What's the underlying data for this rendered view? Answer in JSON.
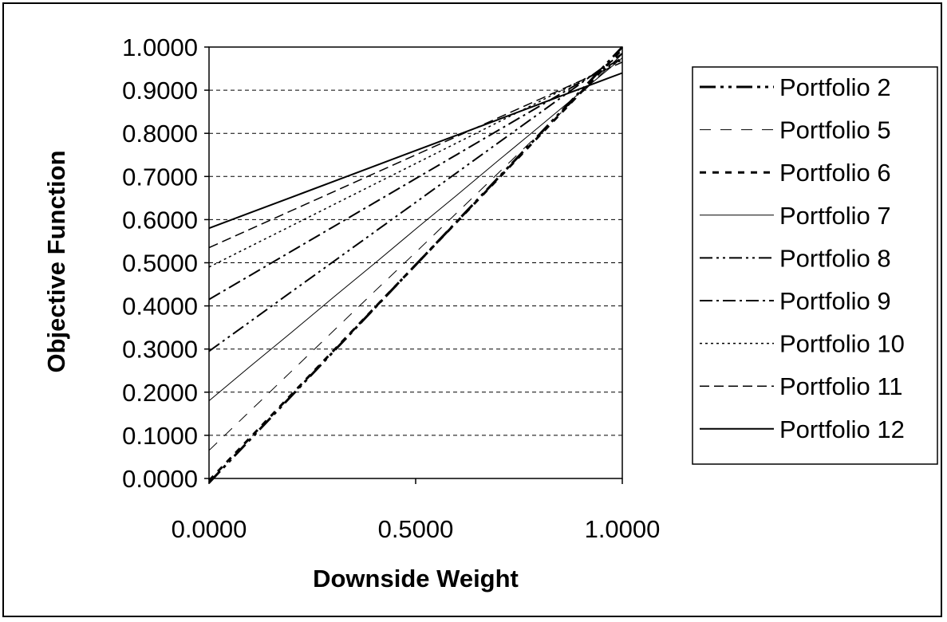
{
  "chart_data": {
    "type": "line",
    "title": "",
    "xlabel": "Downside Weight",
    "ylabel": "Objective Function",
    "xlim": [
      0,
      1
    ],
    "ylim": [
      0,
      1
    ],
    "x_ticks": [
      "0.0000",
      "0.5000",
      "1.0000"
    ],
    "y_ticks": [
      "0.0000",
      "0.1000",
      "0.2000",
      "0.3000",
      "0.4000",
      "0.5000",
      "0.6000",
      "0.7000",
      "0.8000",
      "0.9000",
      "1.0000"
    ],
    "grid": "horizontal dashed",
    "legend_position": "right",
    "x": [
      0,
      0.1,
      0.2,
      0.3,
      0.4,
      0.5,
      0.6,
      0.7,
      0.8,
      0.9,
      1.0
    ],
    "series": [
      {
        "name": "Portfolio 2",
        "dash": "20 6 4 6 4 6",
        "width": 3,
        "values": [
          -0.01,
          0.091,
          0.192,
          0.293,
          0.394,
          0.495,
          0.596,
          0.697,
          0.798,
          0.899,
          1.0
        ]
      },
      {
        "name": "Portfolio 5",
        "dash": "14 12",
        "width": 1,
        "values": [
          0.065,
          0.157,
          0.249,
          0.341,
          0.433,
          0.524,
          0.616,
          0.708,
          0.8,
          0.892,
          0.984
        ]
      },
      {
        "name": "Portfolio 6",
        "dash": "8 8",
        "width": 3,
        "values": [
          -0.005,
          0.095,
          0.195,
          0.295,
          0.395,
          0.495,
          0.595,
          0.695,
          0.795,
          0.895,
          0.995
        ]
      },
      {
        "name": "Portfolio 7",
        "dash": "",
        "width": 1,
        "values": [
          0.18,
          0.26,
          0.339,
          0.419,
          0.498,
          0.578,
          0.657,
          0.737,
          0.816,
          0.896,
          0.975
        ]
      },
      {
        "name": "Portfolio 8",
        "dash": "16 5 3 5 3 5",
        "width": 2,
        "values": [
          0.295,
          0.364,
          0.433,
          0.502,
          0.571,
          0.64,
          0.709,
          0.778,
          0.847,
          0.916,
          0.985
        ]
      },
      {
        "name": "Portfolio 9",
        "dash": "16 5 3 5",
        "width": 2,
        "values": [
          0.415,
          0.471,
          0.527,
          0.583,
          0.639,
          0.695,
          0.751,
          0.807,
          0.863,
          0.919,
          0.975
        ]
      },
      {
        "name": "Portfolio 10",
        "dash": "3 4",
        "width": 1.5,
        "values": [
          0.49,
          0.538,
          0.586,
          0.634,
          0.682,
          0.73,
          0.778,
          0.826,
          0.874,
          0.922,
          0.97
        ]
      },
      {
        "name": "Portfolio 11",
        "dash": "12 6",
        "width": 1.5,
        "values": [
          0.535,
          0.578,
          0.621,
          0.664,
          0.707,
          0.75,
          0.793,
          0.836,
          0.879,
          0.922,
          0.965
        ]
      },
      {
        "name": "Portfolio 12",
        "dash": "",
        "width": 2,
        "values": [
          0.58,
          0.616,
          0.652,
          0.688,
          0.724,
          0.76,
          0.796,
          0.832,
          0.868,
          0.904,
          0.94
        ]
      }
    ],
    "colors": {
      "line": "#000000",
      "grid": "#000000",
      "background": "#ffffff"
    }
  }
}
